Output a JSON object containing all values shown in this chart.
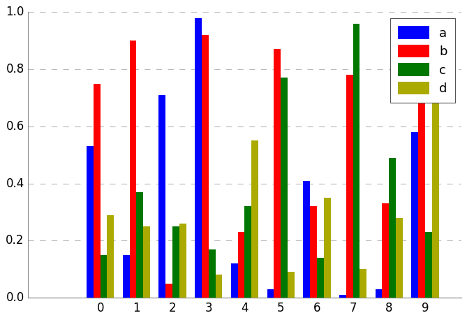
{
  "categories": [
    "0",
    "1",
    "2",
    "3",
    "4",
    "5",
    "6",
    "7",
    "8",
    "9"
  ],
  "series": {
    "a": [
      0.53,
      0.15,
      0.71,
      0.98,
      0.12,
      0.03,
      0.41,
      0.01,
      0.03,
      0.58
    ],
    "b": [
      0.75,
      0.9,
      0.05,
      0.92,
      0.23,
      0.87,
      0.32,
      0.78,
      0.33,
      0.7
    ],
    "c": [
      0.15,
      0.37,
      0.25,
      0.17,
      0.32,
      0.77,
      0.14,
      0.96,
      0.49,
      0.23
    ],
    "d": [
      0.29,
      0.25,
      0.26,
      0.08,
      0.55,
      0.09,
      0.35,
      0.1,
      0.28,
      0.7
    ]
  },
  "colors": {
    "a": "#0000ff",
    "b": "#ff0000",
    "c": "#007700",
    "d": "#aaaa00"
  },
  "legend_labels": [
    "a",
    "b",
    "c",
    "d"
  ],
  "ylim": [
    0.0,
    1.0
  ],
  "yticks": [
    0.0,
    0.2,
    0.4,
    0.6,
    0.8,
    1.0
  ],
  "bar_width": 0.19,
  "figsize": [
    6.69,
    4.58
  ],
  "dpi": 100,
  "background_color": "#ffffff",
  "grid_color": "#bbbbbb",
  "tick_fontsize": 12,
  "legend_fontsize": 13
}
